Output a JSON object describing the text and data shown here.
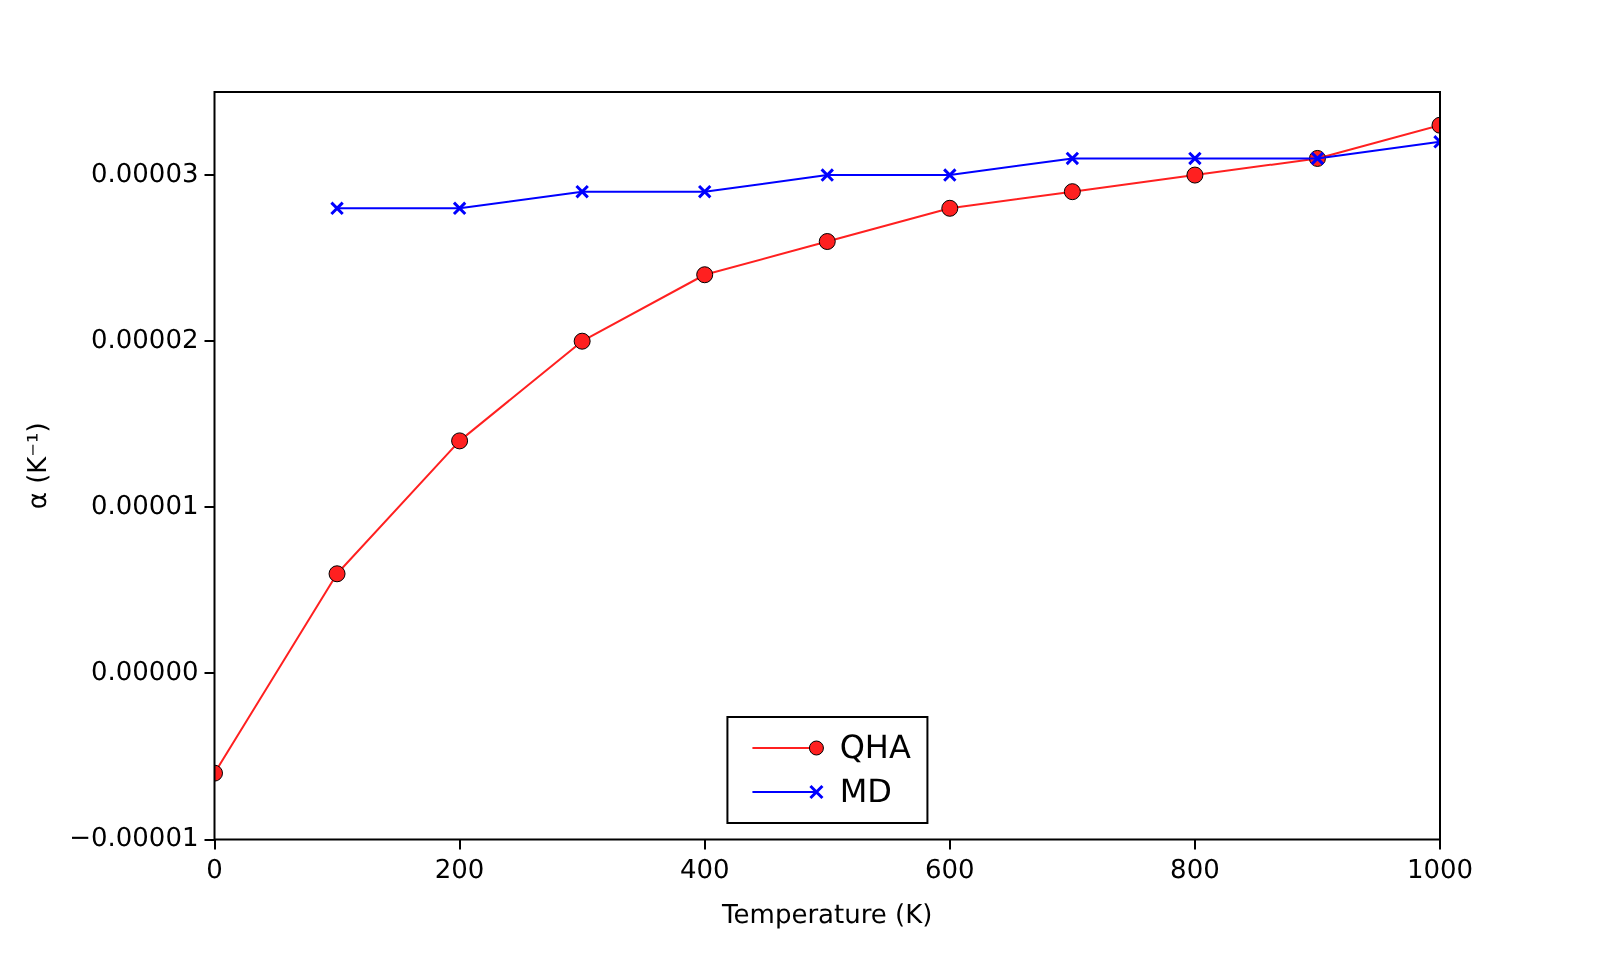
{
  "chart_data": {
    "type": "line",
    "xlabel": "Temperature (K)",
    "ylabel": "α (K⁻¹)",
    "x": [
      0,
      100,
      200,
      300,
      400,
      500,
      600,
      700,
      800,
      900,
      1000
    ],
    "series": [
      {
        "name": "QHA",
        "color": "#ff2020",
        "marker": "circle",
        "values": [
          -6e-06,
          6e-06,
          1.4e-05,
          2e-05,
          2.4e-05,
          2.6e-05,
          2.8e-05,
          2.9e-05,
          3e-05,
          3.1e-05,
          3.3e-05
        ]
      },
      {
        "name": "MD",
        "color": "#0000ff",
        "marker": "cross",
        "values": [
          null,
          2.8e-05,
          2.8e-05,
          2.9e-05,
          2.9e-05,
          3e-05,
          3e-05,
          3.1e-05,
          3.1e-05,
          3.1e-05,
          3.2e-05
        ]
      }
    ],
    "xlim": [
      0,
      1000
    ],
    "xticks": [
      0,
      200,
      400,
      600,
      800,
      1000
    ],
    "ylim": [
      -1e-05,
      3.5e-05
    ],
    "yticks": [
      {
        "value": -1e-05,
        "label": "−0.00001"
      },
      {
        "value": 0,
        "label": "0.00000"
      },
      {
        "value": 1e-05,
        "label": "0.00001"
      },
      {
        "value": 2e-05,
        "label": "0.00002"
      },
      {
        "value": 3e-05,
        "label": "0.00003"
      }
    ],
    "grid": false,
    "legend": "bottom"
  }
}
